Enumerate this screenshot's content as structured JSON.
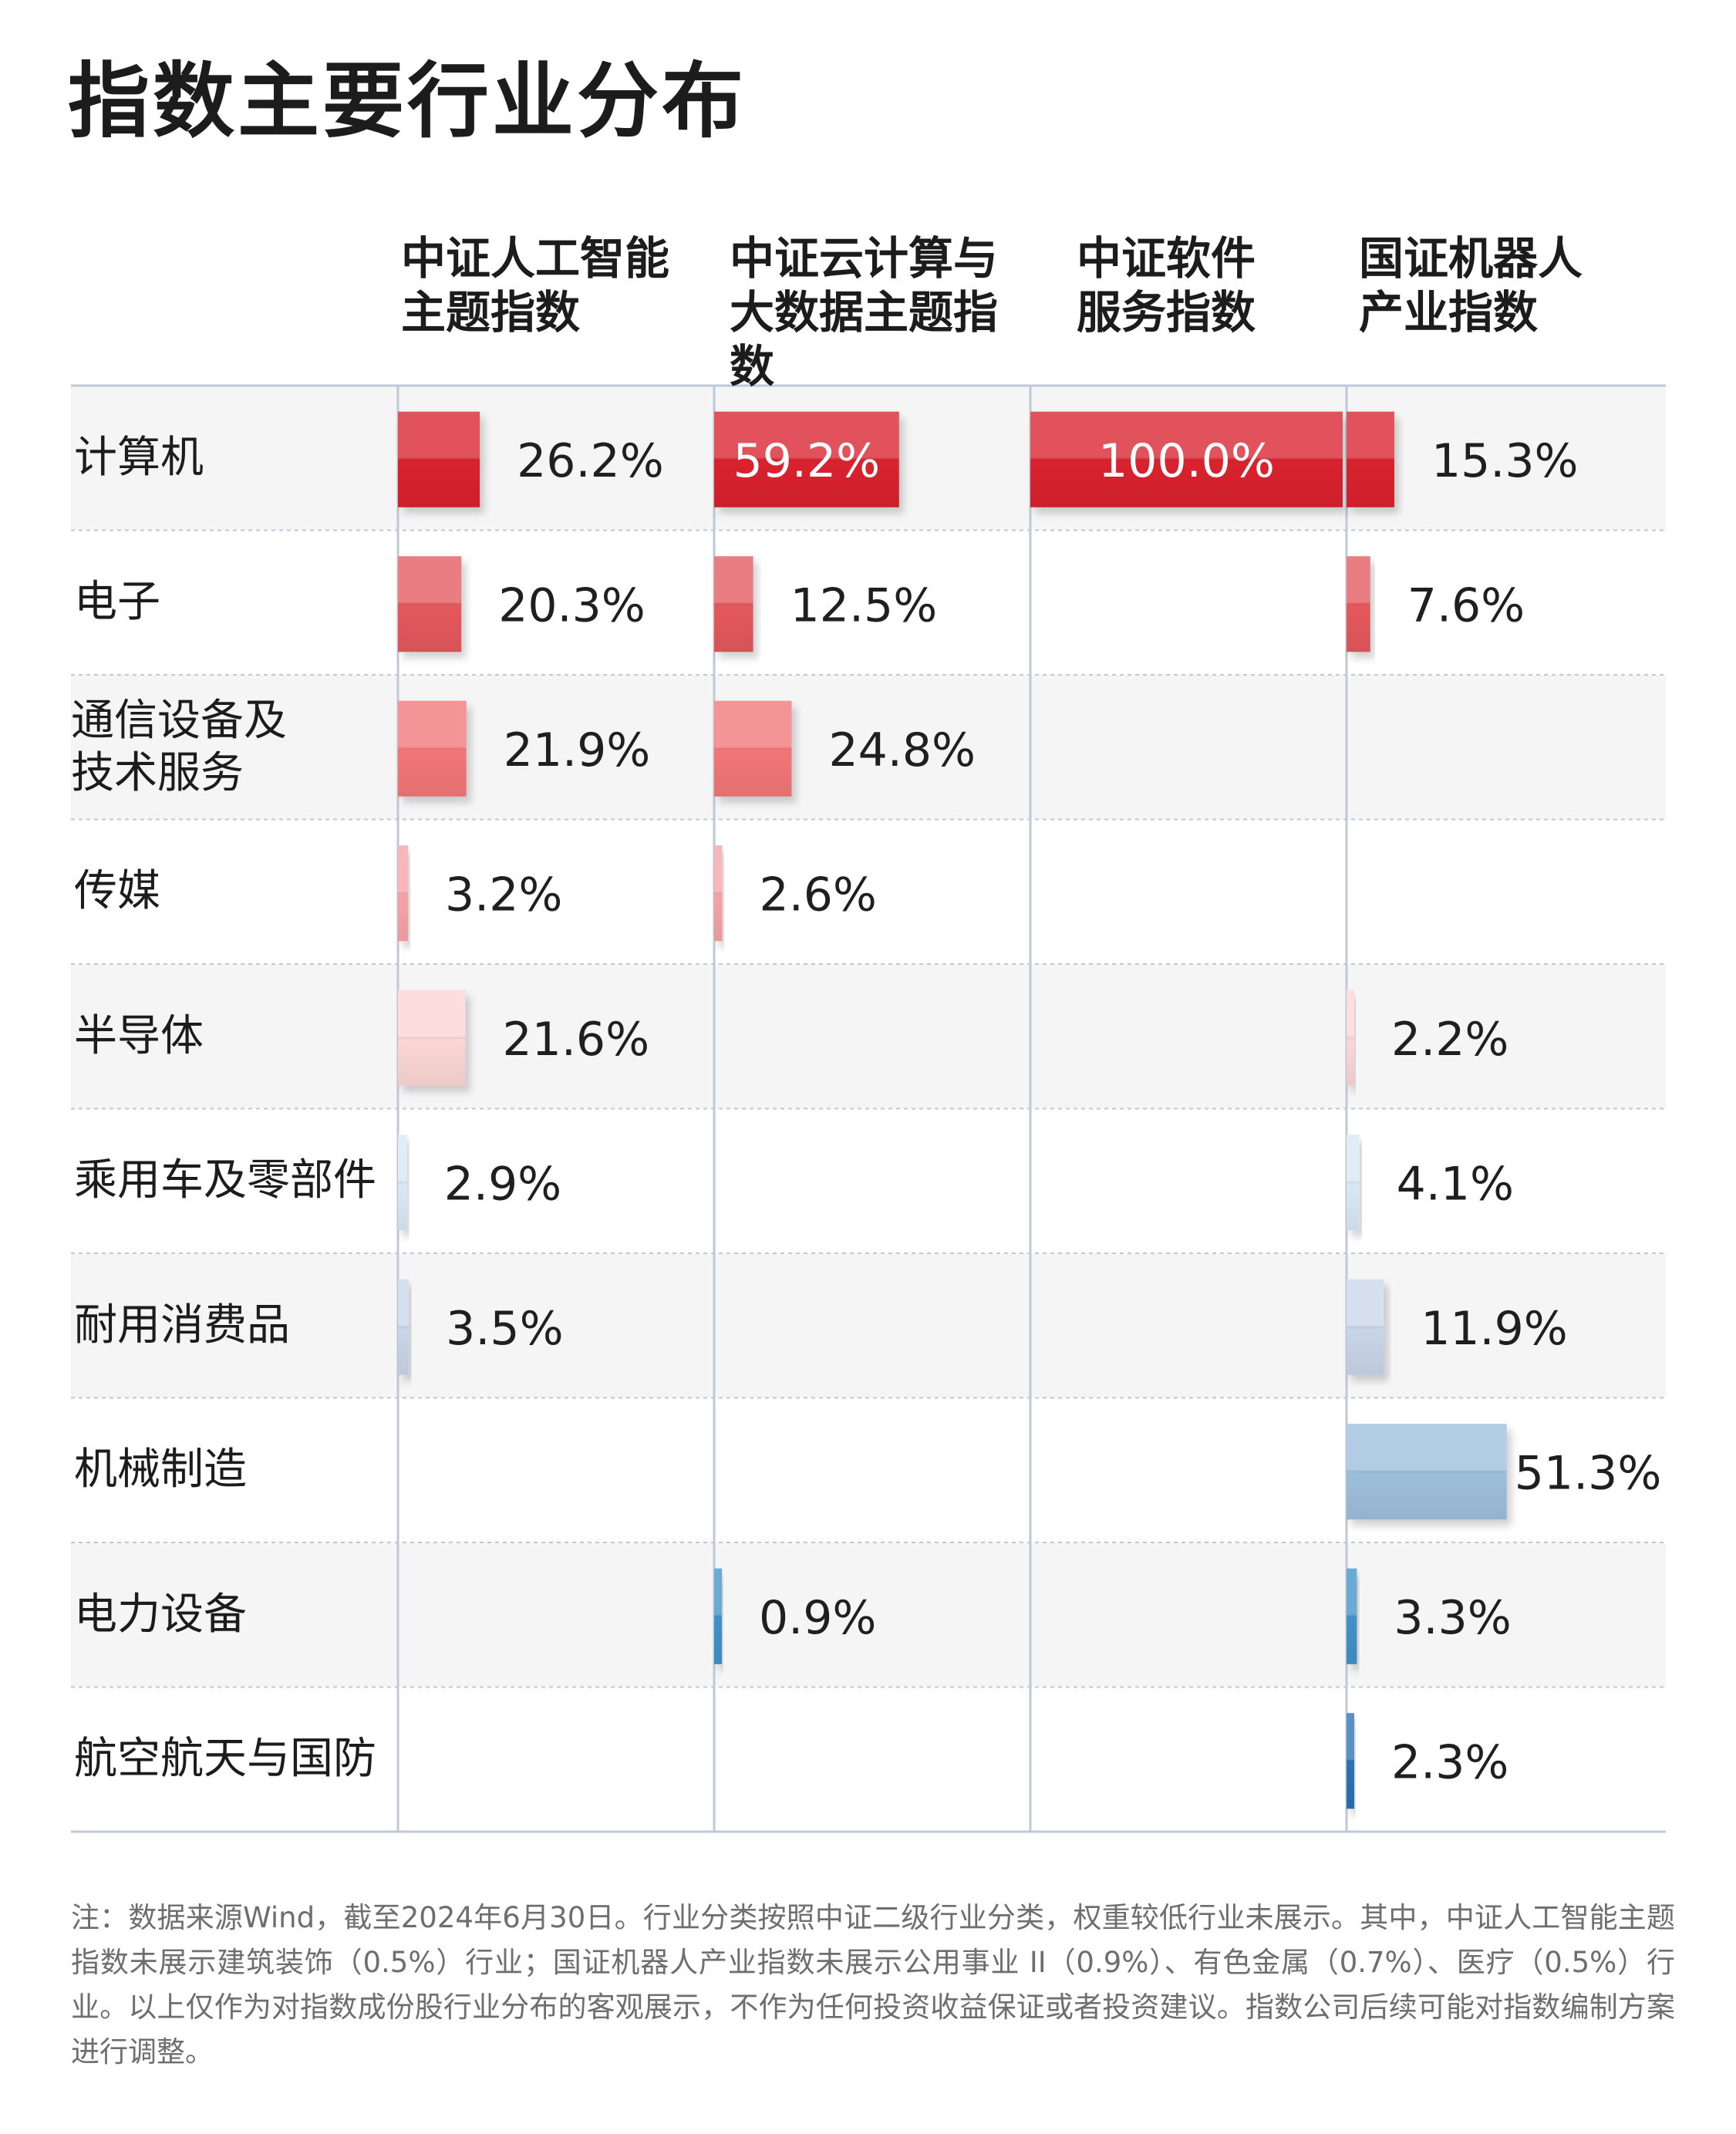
{
  "title": "指数主要行业分布",
  "footnote": "注：数据来源Wind，截至2024年6月30日。行业分类按照中证二级行业分类，权重较低行业未展示。其中，中证人工智能主题指数未展示建筑装饰（0.5%）行业；国证机器人产业指数未展示公用事业 II（0.9%）、有色金属（0.7%）、医疗（0.5%）行业。以上仅作为对指数成份股行业分布的客观展示，不作为任何投资收益保证或者投资建议。指数公司后续可能对指数编制方案进行调整。",
  "chart_data": {
    "type": "bar",
    "categories": [
      "计算机",
      "电子",
      "通信设备及\n技术服务",
      "传媒",
      "半导体",
      "乘用车及零部件",
      "耐用消费品",
      "机械制造",
      "电力设备",
      "航空航天与国防"
    ],
    "series": [
      {
        "name": "中证人工智能\n主题指数",
        "values": [
          26.2,
          20.3,
          21.9,
          3.2,
          21.6,
          2.9,
          3.5,
          null,
          null,
          null
        ],
        "labels": [
          "26.2%",
          "20.3%",
          "21.9%",
          "3.2%",
          "21.6%",
          "2.9%",
          "3.5%",
          "",
          "",
          ""
        ]
      },
      {
        "name": "中证云计算与\n大数据主题指数",
        "values": [
          59.2,
          12.5,
          24.8,
          2.6,
          null,
          null,
          null,
          null,
          0.9,
          null
        ],
        "labels": [
          "59.2%",
          "12.5%",
          "24.8%",
          "2.6%",
          "",
          "",
          "",
          "",
          "0.9%",
          ""
        ]
      },
      {
        "name": "中证软件\n服务指数",
        "values": [
          100.0,
          null,
          null,
          null,
          null,
          null,
          null,
          null,
          null,
          null
        ],
        "labels": [
          "100.0%",
          "",
          "",
          "",
          "",
          "",
          "",
          "",
          "",
          ""
        ]
      },
      {
        "name": "国证机器人\n产业指数",
        "values": [
          15.3,
          7.6,
          null,
          null,
          2.2,
          4.1,
          11.9,
          51.3,
          3.3,
          2.3
        ],
        "labels": [
          "15.3%",
          "7.6%",
          "",
          "",
          "2.2%",
          "4.1%",
          "11.9%",
          "51.3%",
          "3.3%",
          "2.3%"
        ]
      }
    ],
    "xlim": [
      0,
      100
    ],
    "grid": true,
    "legend": "none",
    "colors": {
      "计算机": "#d9232d",
      "电子": "#e4585d",
      "通信设备及\n技术服务": "#f27678",
      "传媒": "#f6a3a6",
      "半导体": "#fbd6d4",
      "乘用车及零部件": "#d9e8f4",
      "耐用消费品": "#c9d6e8",
      "机械制造": "#9dbedb",
      "电力设备": "#3f92c8",
      "航空航天与国防": "#2c72b4",
      "row_alt_bg": "#f5f5f5",
      "grid_line": "#bfc8d6"
    }
  }
}
